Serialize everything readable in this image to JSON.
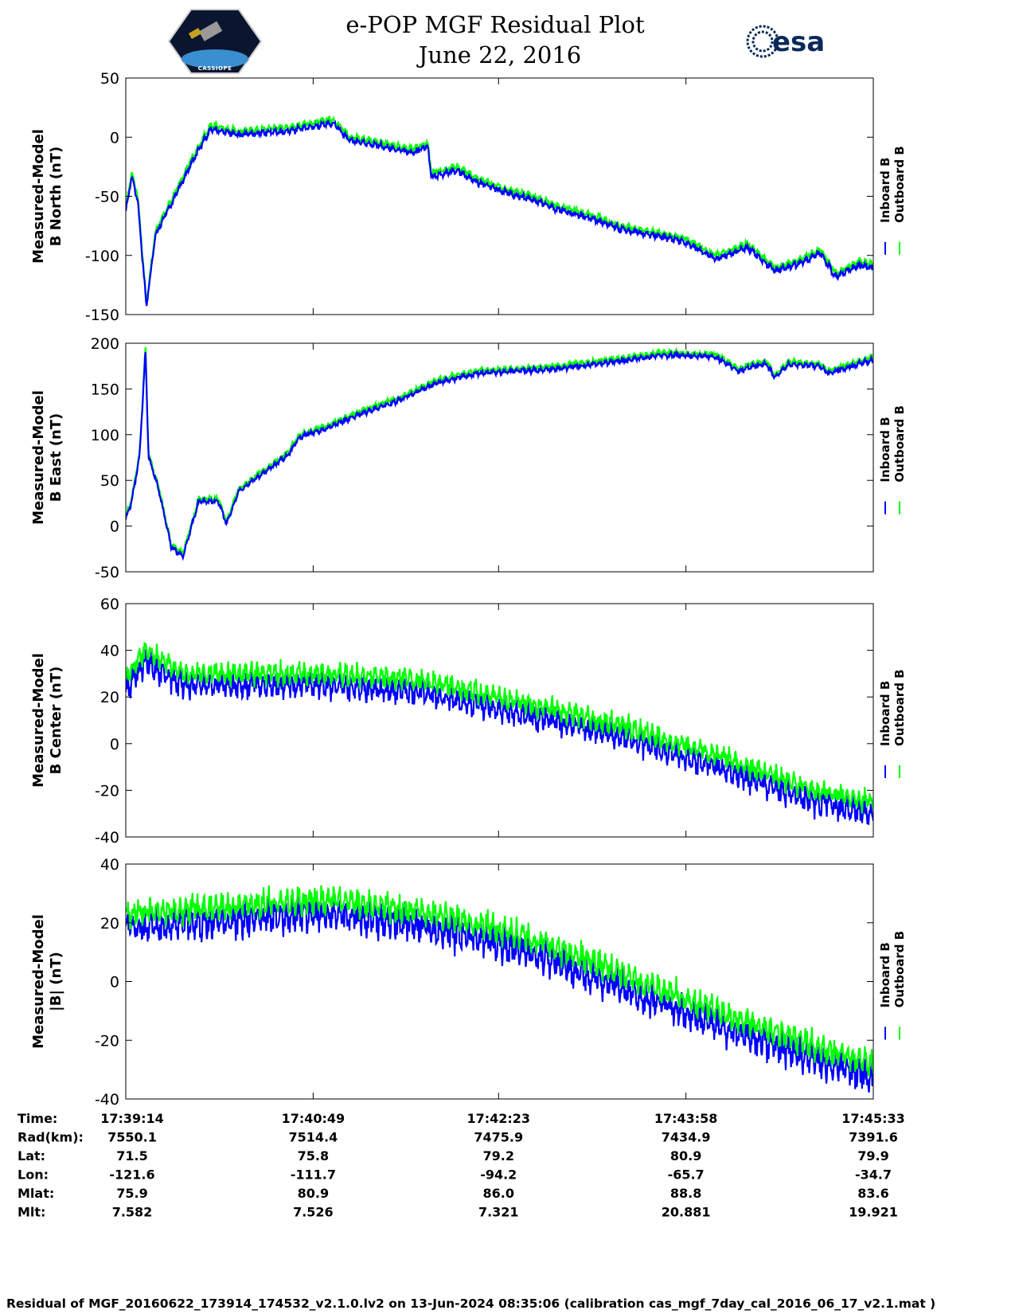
{
  "header": {
    "title_line1": "e-POP MGF Residual Plot",
    "title_line2": "June 22, 2016",
    "left_logo_text": "CASSIOPE",
    "right_logo_text": "esa"
  },
  "colors": {
    "inboard": "#0000ff",
    "outboard": "#00ff00"
  },
  "chart_data": [
    {
      "type": "line",
      "ylabel_line1": "Measured-Model",
      "ylabel_line2": "B North (nT)",
      "ylim": [
        -150,
        50
      ],
      "yticks": [
        50,
        0,
        -50,
        -100,
        -150
      ],
      "legend": [
        "Inboard B",
        "Outboard B"
      ],
      "legend_placement": "right",
      "x_unit": "seconds since 17:39:14",
      "series": [
        {
          "name": "Outboard B",
          "offset": 0,
          "noise": 3,
          "x": [
            0,
            3,
            6,
            10.5,
            15,
            21,
            33,
            43,
            57,
            82,
            105,
            114,
            130,
            146,
            153,
            155,
            168,
            178,
            195,
            207,
            219,
            235,
            251,
            267,
            283,
            299,
            315,
            329,
            340,
            352,
            360,
            372,
            379
          ],
          "y": [
            -60,
            -30,
            -50,
            -140,
            -80,
            -60,
            -20,
            10,
            5,
            8,
            15,
            0,
            -5,
            -10,
            -5,
            -30,
            -25,
            -35,
            -45,
            -50,
            -58,
            -65,
            -75,
            -80,
            -85,
            -100,
            -90,
            -110,
            -105,
            -95,
            -115,
            -105,
            -108
          ]
        },
        {
          "name": "Inboard B",
          "offset": -3,
          "noise": 3,
          "x": [
            0,
            3,
            6,
            10.5,
            15,
            21,
            33,
            43,
            57,
            82,
            105,
            114,
            130,
            146,
            153,
            155,
            168,
            178,
            195,
            207,
            219,
            235,
            251,
            267,
            283,
            299,
            315,
            329,
            340,
            352,
            360,
            372,
            379
          ],
          "y": [
            -60,
            -30,
            -50,
            -140,
            -80,
            -60,
            -20,
            10,
            5,
            8,
            15,
            0,
            -5,
            -10,
            -5,
            -30,
            -25,
            -35,
            -45,
            -50,
            -58,
            -65,
            -75,
            -80,
            -85,
            -100,
            -90,
            -110,
            -105,
            -95,
            -115,
            -105,
            -108
          ]
        }
      ]
    },
    {
      "type": "line",
      "ylabel_line1": "Measured-Model",
      "ylabel_line2": "B East (nT)",
      "ylim": [
        -50,
        200
      ],
      "yticks": [
        200,
        150,
        100,
        50,
        0,
        -50
      ],
      "legend": [
        "Inboard B",
        "Outboard B"
      ],
      "legend_placement": "right",
      "x_unit": "seconds since 17:39:14",
      "series": [
        {
          "name": "Outboard B",
          "offset": 0,
          "noise": 3,
          "x": [
            0,
            3,
            7,
            10,
            11.5,
            17,
            23,
            29,
            37,
            47,
            51,
            57,
            69,
            82,
            88,
            102,
            118,
            138,
            158,
            178,
            219,
            256,
            272,
            299,
            311,
            318,
            325,
            329,
            336,
            352,
            356,
            379
          ],
          "y": [
            10,
            30,
            80,
            195,
            80,
            40,
            -20,
            -30,
            30,
            30,
            5,
            40,
            60,
            80,
            100,
            110,
            125,
            140,
            160,
            170,
            175,
            185,
            190,
            188,
            172,
            178,
            180,
            165,
            180,
            178,
            170,
            185
          ]
        },
        {
          "name": "Inboard B",
          "offset": -3,
          "noise": 3,
          "x": [
            0,
            3,
            7,
            10,
            11.5,
            17,
            23,
            29,
            37,
            47,
            51,
            57,
            69,
            82,
            88,
            102,
            118,
            138,
            158,
            178,
            219,
            256,
            272,
            299,
            311,
            318,
            325,
            329,
            336,
            352,
            356,
            379
          ],
          "y": [
            10,
            30,
            80,
            195,
            80,
            40,
            -20,
            -30,
            30,
            30,
            5,
            40,
            60,
            80,
            100,
            110,
            125,
            140,
            160,
            170,
            175,
            185,
            190,
            188,
            172,
            178,
            180,
            165,
            180,
            178,
            170,
            185
          ]
        }
      ]
    },
    {
      "type": "line",
      "ylabel_line1": "Measured-Model",
      "ylabel_line2": "B Center (nT)",
      "ylim": [
        -40,
        60
      ],
      "yticks": [
        60,
        40,
        20,
        0,
        -20,
        -40
      ],
      "legend": [
        "Inboard B",
        "Outboard B"
      ],
      "legend_placement": "right",
      "x_unit": "seconds since 17:39:14",
      "series": [
        {
          "name": "Inboard B",
          "offset": -5,
          "noise": 6,
          "x": [
            0,
            10,
            30,
            100,
            150,
            200,
            250,
            300,
            350,
            379
          ],
          "y": [
            28,
            40,
            30,
            30,
            27,
            18,
            8,
            -5,
            -20,
            -25
          ]
        },
        {
          "name": "Outboard B",
          "offset": 0,
          "noise": 5,
          "x": [
            0,
            10,
            30,
            100,
            150,
            200,
            250,
            300,
            350,
            379
          ],
          "y": [
            28,
            40,
            30,
            30,
            27,
            18,
            8,
            -5,
            -20,
            -25
          ]
        }
      ]
    },
    {
      "type": "line",
      "ylabel_line1": "Measured-Model",
      "ylabel_line2": "|B| (nT)",
      "ylim": [
        -40,
        40
      ],
      "yticks": [
        40,
        20,
        0,
        -20,
        -40
      ],
      "legend": [
        "Inboard B",
        "Outboard B"
      ],
      "legend_placement": "right",
      "x_unit": "seconds since 17:39:14",
      "series": [
        {
          "name": "Inboard B",
          "offset": -5,
          "noise": 6,
          "x": [
            0,
            100,
            150,
            200,
            250,
            300,
            350,
            379
          ],
          "y": [
            23,
            28,
            24,
            16,
            3,
            -10,
            -22,
            -28
          ]
        },
        {
          "name": "Outboard B",
          "offset": 0,
          "noise": 5,
          "x": [
            0,
            100,
            150,
            200,
            250,
            300,
            350,
            379
          ],
          "y": [
            23,
            28,
            24,
            16,
            3,
            -10,
            -22,
            -28
          ]
        }
      ]
    }
  ],
  "x_range_seconds": [
    0,
    379
  ],
  "x_tick_seconds": [
    0,
    95,
    189,
    284,
    379
  ],
  "ephemeris": {
    "rows": [
      {
        "label": "Time:",
        "values": [
          "17:39:14",
          "17:40:49",
          "17:42:23",
          "17:43:58",
          "17:45:33"
        ]
      },
      {
        "label": "Rad(km):",
        "values": [
          "7550.1",
          "7514.4",
          "7475.9",
          "7434.9",
          "7391.6"
        ]
      },
      {
        "label": "Lat:",
        "values": [
          "71.5",
          "75.8",
          "79.2",
          "80.9",
          "79.9"
        ]
      },
      {
        "label": "Lon:",
        "values": [
          "-121.6",
          "-111.7",
          "-94.2",
          "-65.7",
          "-34.7"
        ]
      },
      {
        "label": "Mlat:",
        "values": [
          "75.9",
          "80.9",
          "86.0",
          "88.8",
          "83.6"
        ]
      },
      {
        "label": "Mlt:",
        "values": [
          "7.582",
          "7.526",
          "7.321",
          "20.881",
          "19.921"
        ]
      }
    ]
  },
  "footer": "Residual of MGF_20160622_173914_174532_v2.1.0.lv2 on 13-Jun-2024 08:35:06 (calibration cas_mgf_7day_cal_2016_06_17_v2.1.mat )"
}
